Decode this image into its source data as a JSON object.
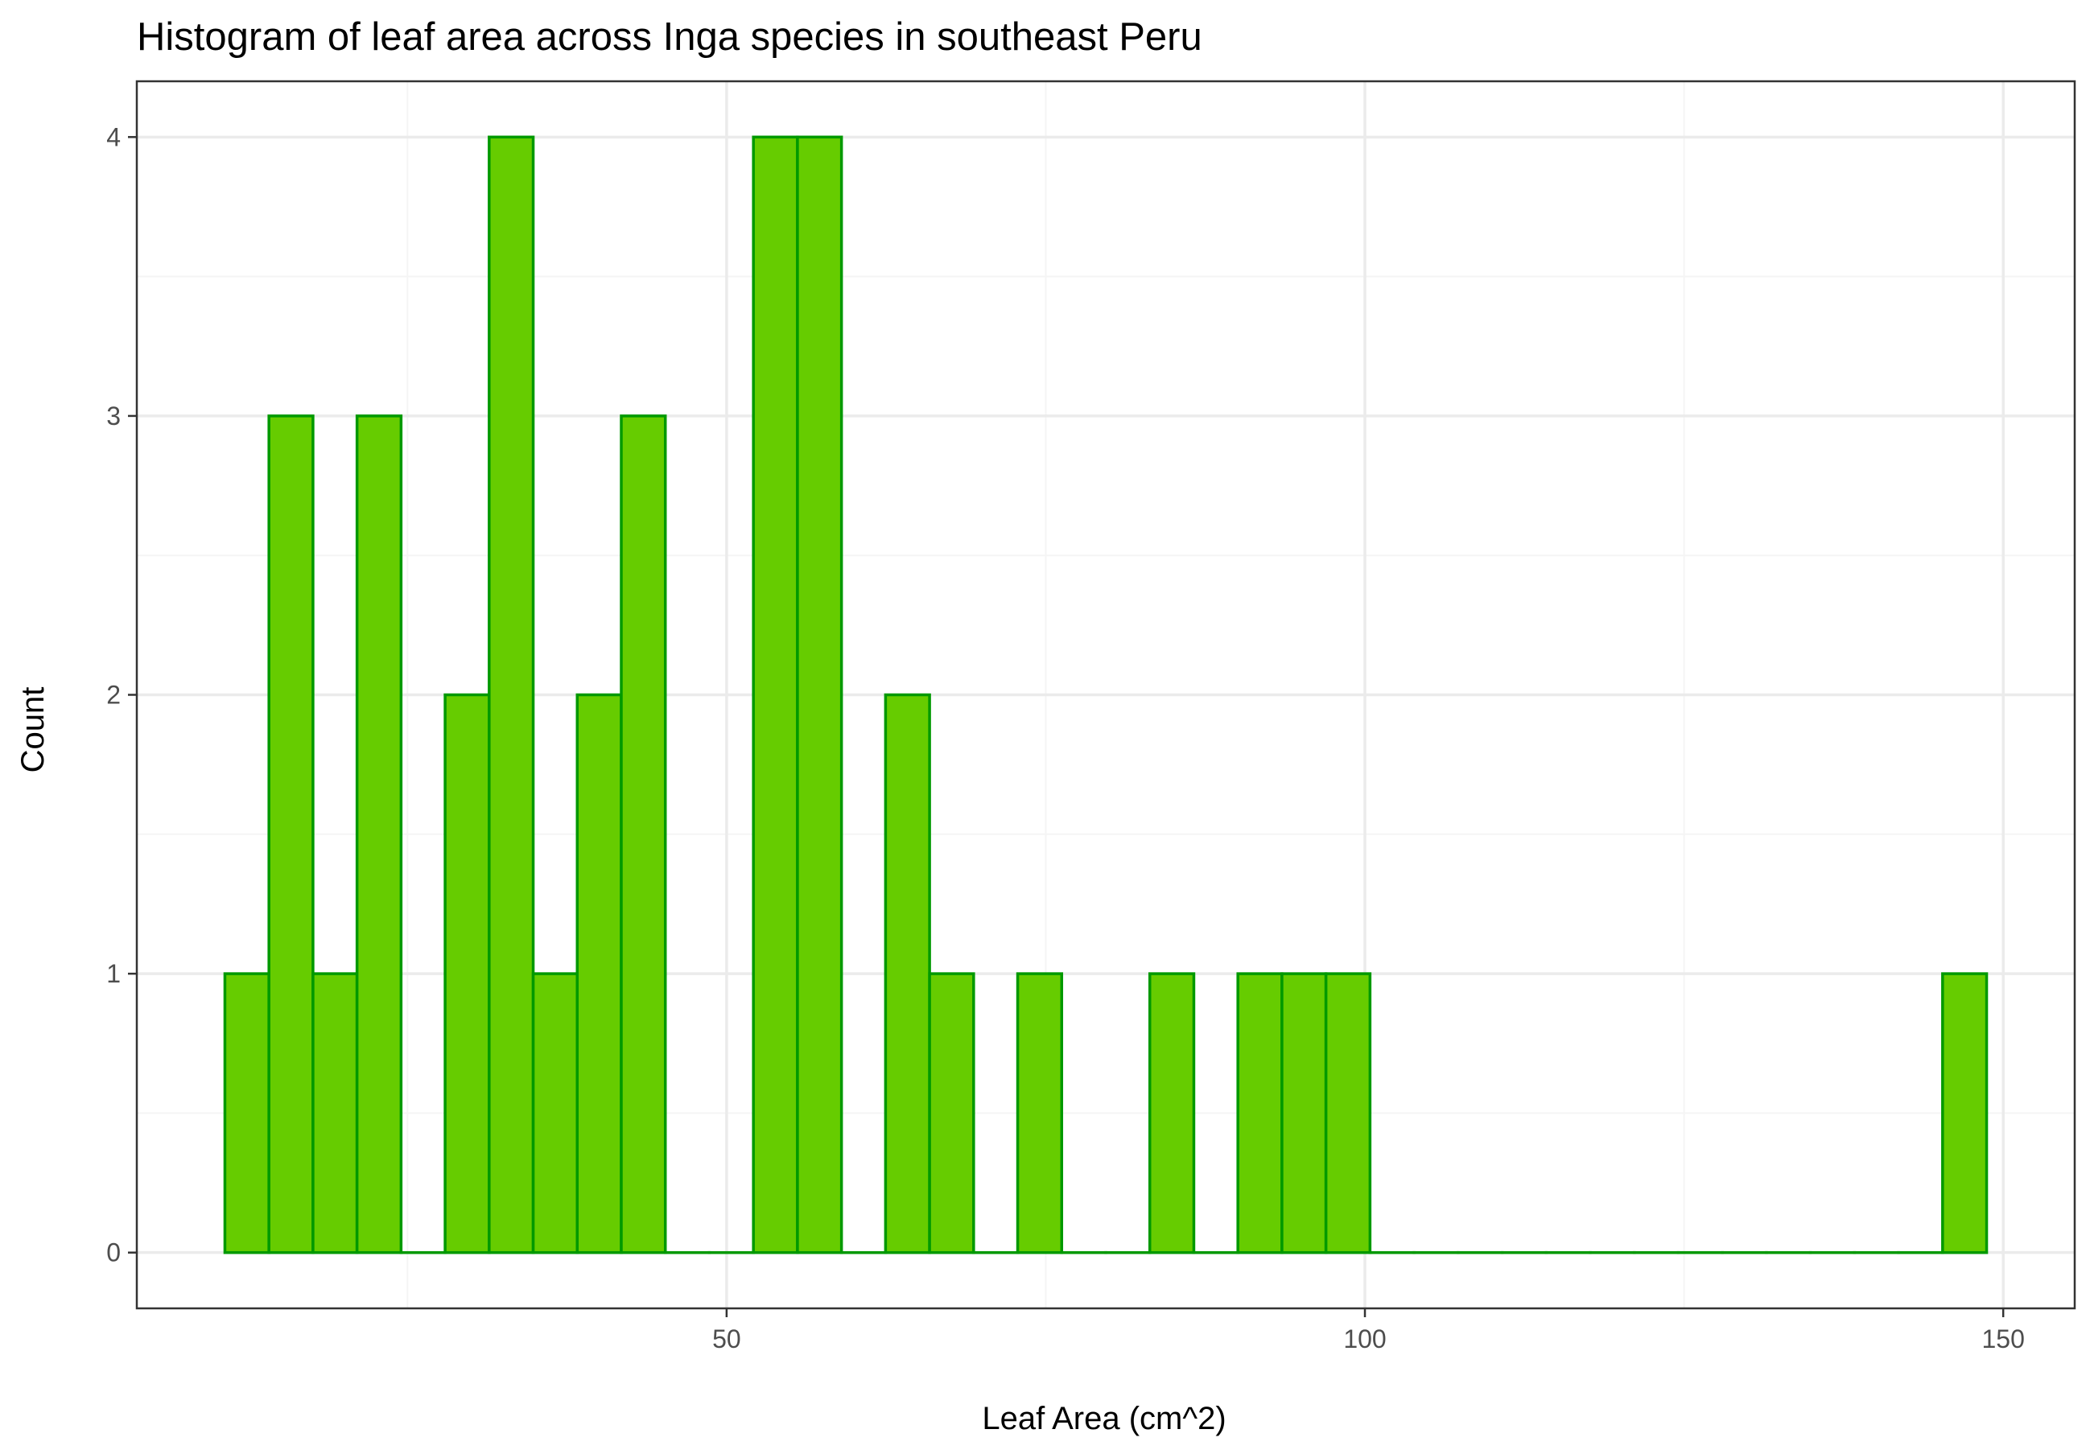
{
  "chart_data": {
    "type": "bar",
    "title": "Histogram of leaf area across Inga species in southeast Peru",
    "xlabel": "Leaf Area (cm^2)",
    "ylabel": "Count",
    "bin_width": 3.45,
    "bins": [
      {
        "x0": 10.7,
        "x1": 14.15,
        "count": 1
      },
      {
        "x0": 14.15,
        "x1": 17.6,
        "count": 3
      },
      {
        "x0": 17.6,
        "x1": 21.05,
        "count": 1
      },
      {
        "x0": 21.05,
        "x1": 24.5,
        "count": 3
      },
      {
        "x0": 24.5,
        "x1": 27.95,
        "count": 0
      },
      {
        "x0": 27.95,
        "x1": 31.4,
        "count": 2
      },
      {
        "x0": 31.4,
        "x1": 34.85,
        "count": 4
      },
      {
        "x0": 34.85,
        "x1": 38.3,
        "count": 1
      },
      {
        "x0": 38.3,
        "x1": 41.75,
        "count": 2
      },
      {
        "x0": 41.75,
        "x1": 45.2,
        "count": 3
      },
      {
        "x0": 45.2,
        "x1": 48.65,
        "count": 0
      },
      {
        "x0": 48.65,
        "x1": 52.1,
        "count": 0
      },
      {
        "x0": 52.1,
        "x1": 55.55,
        "count": 4
      },
      {
        "x0": 55.55,
        "x1": 59.0,
        "count": 4
      },
      {
        "x0": 59.0,
        "x1": 62.45,
        "count": 0
      },
      {
        "x0": 62.45,
        "x1": 65.9,
        "count": 2
      },
      {
        "x0": 65.9,
        "x1": 69.35,
        "count": 1
      },
      {
        "x0": 69.35,
        "x1": 72.8,
        "count": 0
      },
      {
        "x0": 72.8,
        "x1": 76.25,
        "count": 1
      },
      {
        "x0": 76.25,
        "x1": 79.7,
        "count": 0
      },
      {
        "x0": 79.7,
        "x1": 83.15,
        "count": 0
      },
      {
        "x0": 83.15,
        "x1": 86.6,
        "count": 1
      },
      {
        "x0": 86.6,
        "x1": 90.05,
        "count": 0
      },
      {
        "x0": 90.05,
        "x1": 93.5,
        "count": 1
      },
      {
        "x0": 93.5,
        "x1": 96.95,
        "count": 1
      },
      {
        "x0": 96.95,
        "x1": 100.4,
        "count": 1
      },
      {
        "x0": 100.4,
        "x1": 103.85,
        "count": 0
      },
      {
        "x0": 103.85,
        "x1": 107.3,
        "count": 0
      },
      {
        "x0": 107.3,
        "x1": 110.75,
        "count": 0
      },
      {
        "x0": 110.75,
        "x1": 114.2,
        "count": 0
      },
      {
        "x0": 114.2,
        "x1": 117.65,
        "count": 0
      },
      {
        "x0": 117.65,
        "x1": 121.1,
        "count": 0
      },
      {
        "x0": 121.1,
        "x1": 124.55,
        "count": 0
      },
      {
        "x0": 124.55,
        "x1": 128.0,
        "count": 0
      },
      {
        "x0": 128.0,
        "x1": 131.45,
        "count": 0
      },
      {
        "x0": 131.45,
        "x1": 134.9,
        "count": 0
      },
      {
        "x0": 134.9,
        "x1": 138.35,
        "count": 0
      },
      {
        "x0": 138.35,
        "x1": 141.8,
        "count": 0
      },
      {
        "x0": 141.8,
        "x1": 145.25,
        "count": 0
      },
      {
        "x0": 145.25,
        "x1": 148.7,
        "count": 1
      }
    ],
    "xlim": [
      3.8,
      155.6
    ],
    "ylim": [
      -0.2,
      4.2
    ],
    "x_ticks": [
      50,
      100,
      150
    ],
    "x_tick_labels": [
      "50",
      "100",
      "150"
    ],
    "y_ticks": [
      0,
      1,
      2,
      3,
      4
    ],
    "y_tick_labels": [
      "0",
      "1",
      "2",
      "3",
      "4"
    ],
    "x_minor_gridlines": [
      25,
      75,
      125
    ],
    "y_minor_gridlines": [
      0.5,
      1.5,
      2.5,
      3.5
    ],
    "grid": true,
    "legend": "none",
    "colors": {
      "bar_fill": "#66CC00",
      "bar_outline": "#009900",
      "grid_major": "#EBEBEB",
      "grid_minor": "#F5F5F5",
      "panel_border": "#333333",
      "tick_text": "#4D4D4D"
    }
  }
}
